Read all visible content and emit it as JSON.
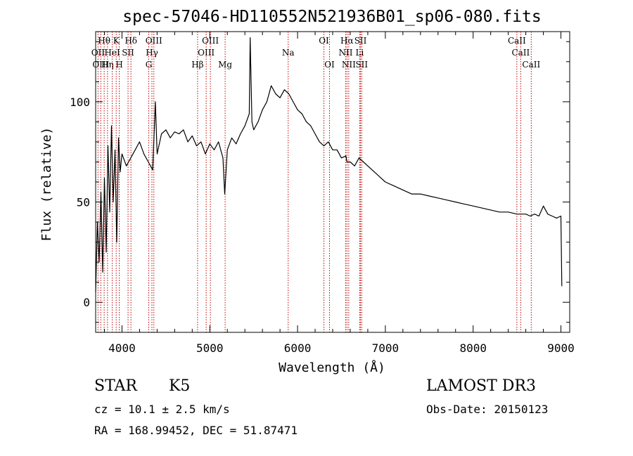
{
  "chart_data": {
    "type": "line",
    "title": "spec-57046-HD110552N521936B01_sp06-080.fits",
    "xlabel": "Wavelength (Å)",
    "ylabel": "Flux (relative)",
    "xlim": [
      3700,
      9100
    ],
    "ylim": [
      -15,
      135
    ],
    "xticks": [
      4000,
      5000,
      6000,
      7000,
      8000,
      9000
    ],
    "yticks": [
      0,
      50,
      100
    ],
    "grid": false,
    "series": [
      {
        "name": "flux",
        "x": [
          3700,
          3720,
          3740,
          3760,
          3780,
          3800,
          3820,
          3840,
          3860,
          3880,
          3900,
          3920,
          3940,
          3960,
          3980,
          4000,
          4050,
          4100,
          4150,
          4200,
          4250,
          4300,
          4350,
          4380,
          4400,
          4450,
          4500,
          4550,
          4600,
          4650,
          4700,
          4750,
          4800,
          4850,
          4900,
          4950,
          5000,
          5050,
          5100,
          5150,
          5170,
          5200,
          5250,
          5300,
          5350,
          5400,
          5450,
          5460,
          5480,
          5500,
          5550,
          5600,
          5650,
          5700,
          5750,
          5800,
          5850,
          5900,
          5950,
          6000,
          6050,
          6100,
          6150,
          6200,
          6250,
          6300,
          6350,
          6400,
          6450,
          6500,
          6550,
          6563,
          6600,
          6650,
          6700,
          6750,
          6800,
          6850,
          6900,
          6950,
          7000,
          7100,
          7200,
          7300,
          7400,
          7500,
          7600,
          7700,
          7800,
          7900,
          8000,
          8100,
          8200,
          8300,
          8400,
          8500,
          8600,
          8650,
          8700,
          8750,
          8800,
          8850,
          8900,
          8950,
          9000,
          9010
        ],
        "y": [
          5,
          40,
          20,
          55,
          15,
          62,
          25,
          78,
          45,
          88,
          50,
          76,
          30,
          82,
          65,
          74,
          68,
          72,
          76,
          80,
          74,
          70,
          66,
          100,
          74,
          84,
          86,
          82,
          85,
          84,
          86,
          80,
          83,
          78,
          80,
          74,
          79,
          76,
          80,
          72,
          54,
          76,
          82,
          79,
          84,
          88,
          94,
          132,
          90,
          86,
          90,
          96,
          100,
          108,
          104,
          102,
          106,
          104,
          100,
          96,
          94,
          90,
          88,
          84,
          80,
          78,
          80,
          76,
          76,
          72,
          73,
          70,
          70,
          68,
          72,
          70,
          68,
          66,
          64,
          62,
          60,
          58,
          56,
          54,
          54,
          53,
          52,
          51,
          50,
          49,
          48,
          47,
          46,
          45,
          45,
          44,
          44,
          43,
          44,
          43,
          48,
          44,
          43,
          42,
          43,
          8
        ]
      }
    ],
    "annotations": {
      "line_labels": [
        {
          "label": "Hθ",
          "wavelength": 3797,
          "row": 1
        },
        {
          "label": "K",
          "wavelength": 3934,
          "row": 1
        },
        {
          "label": "Hδ",
          "wavelength": 4102,
          "row": 1
        },
        {
          "label": "OIII",
          "wavelength": 4363,
          "row": 1
        },
        {
          "label": "OIII",
          "wavelength": 5007,
          "row": 1
        },
        {
          "label": "OI",
          "wavelength": 6300,
          "row": 1
        },
        {
          "label": "Hα",
          "wavelength": 6563,
          "row": 1
        },
        {
          "label": "SII",
          "wavelength": 6717,
          "row": 1
        },
        {
          "label": "CaII",
          "wavelength": 8498,
          "row": 1
        },
        {
          "label": "OII",
          "wavelength": 3727,
          "row": 2
        },
        {
          "label": "HeI",
          "wavelength": 3889,
          "row": 2
        },
        {
          "label": "SII",
          "wavelength": 4069,
          "row": 2
        },
        {
          "label": "Hγ",
          "wavelength": 4341,
          "row": 2
        },
        {
          "label": "OIII",
          "wavelength": 4959,
          "row": 2
        },
        {
          "label": "Na",
          "wavelength": 5893,
          "row": 2
        },
        {
          "label": "NII",
          "wavelength": 6548,
          "row": 2
        },
        {
          "label": "Li",
          "wavelength": 6708,
          "row": 2
        },
        {
          "label": "CaII",
          "wavelength": 8542,
          "row": 2
        },
        {
          "label": "OIII",
          "wavelength": 3759,
          "row": 3
        },
        {
          "label": "Hη",
          "wavelength": 3835,
          "row": 3
        },
        {
          "label": "H",
          "wavelength": 3969,
          "row": 3
        },
        {
          "label": "G",
          "wavelength": 4305,
          "row": 3
        },
        {
          "label": "Hβ",
          "wavelength": 4861,
          "row": 3
        },
        {
          "label": "Mg",
          "wavelength": 5175,
          "row": 3
        },
        {
          "label": "OI",
          "wavelength": 6364,
          "row": 3
        },
        {
          "label": "NII",
          "wavelength": 6583,
          "row": 3
        },
        {
          "label": "SII",
          "wavelength": 6731,
          "row": 3
        },
        {
          "label": "CaII",
          "wavelength": 8662,
          "row": 3
        }
      ],
      "marker_lines": [
        3727,
        3759,
        3797,
        3835,
        3889,
        3934,
        3969,
        4069,
        4102,
        4305,
        4341,
        4363,
        4861,
        4959,
        5007,
        5175,
        5893,
        6300,
        6364,
        6548,
        6563,
        6583,
        6708,
        6717,
        6731,
        8498,
        8542,
        8662
      ]
    }
  },
  "info": {
    "object_class": "STAR",
    "subclass": "K5",
    "survey": "LAMOST DR3",
    "redshift": "cz = 10.1 ± 2.5 km/s",
    "obs_date": "Obs-Date: 20150123",
    "coords": "RA = 168.99452, DEC =  51.87471"
  },
  "colors": {
    "marker_line": "#c00000",
    "spectrum": "#000000",
    "axis": "#000000"
  }
}
